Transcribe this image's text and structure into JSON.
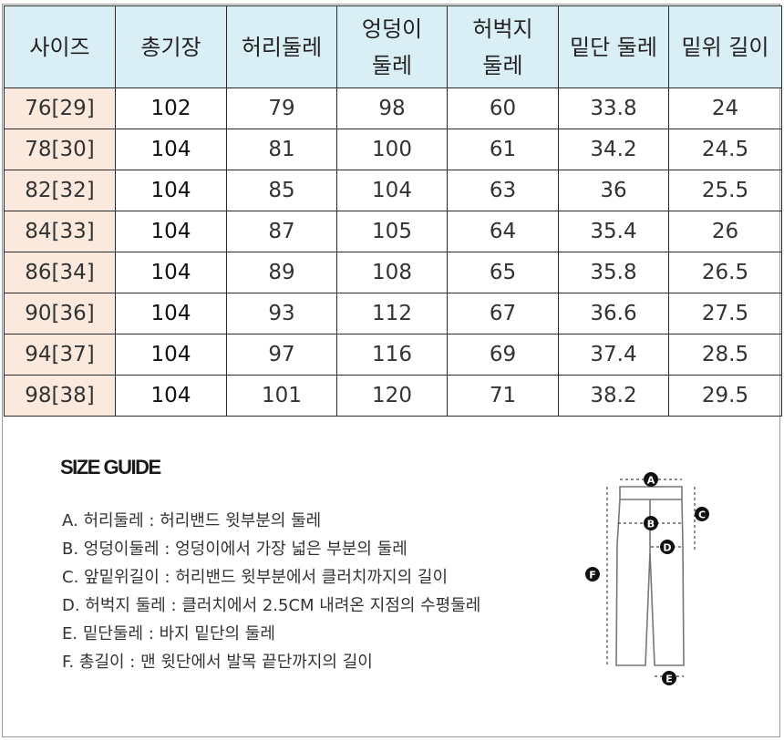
{
  "size_table": {
    "headers": [
      "사이즈",
      "총기장",
      "허리둘레",
      "엉덩이 둘레",
      "허벅지 둘레",
      "밑단 둘레",
      "밑위 길이"
    ],
    "header_lines": [
      [
        "사이즈"
      ],
      [
        "총기장"
      ],
      [
        "허리둘레"
      ],
      [
        "엉덩이",
        "둘레"
      ],
      [
        "허벅지",
        "둘레"
      ],
      [
        "밑단 둘레"
      ],
      [
        "밑위 길이"
      ]
    ],
    "rows": [
      [
        "76[29]",
        "102",
        "79",
        "98",
        "60",
        "33.8",
        "24"
      ],
      [
        "78[30]",
        "104",
        "81",
        "100",
        "61",
        "34.2",
        "24.5"
      ],
      [
        "82[32]",
        "104",
        "85",
        "104",
        "63",
        "36",
        "25.5"
      ],
      [
        "84[33]",
        "104",
        "87",
        "105",
        "64",
        "35.4",
        "26"
      ],
      [
        "86[34]",
        "104",
        "89",
        "108",
        "65",
        "35.8",
        "26.5"
      ],
      [
        "90[36]",
        "104",
        "93",
        "112",
        "67",
        "36.6",
        "27.5"
      ],
      [
        "94[37]",
        "104",
        "97",
        "116",
        "69",
        "37.4",
        "28.5"
      ],
      [
        "98[38]",
        "104",
        "101",
        "120",
        "71",
        "38.2",
        "29.5"
      ]
    ]
  },
  "size_guide": {
    "title": "SIZE GUIDE",
    "items": [
      "A. 허리둘레 : 허리밴드 윗부분의 둘레",
      "B. 엉덩이둘레 : 엉덩이에서 가장 넓은 부분의 둘레",
      "C. 앞밑위길이 : 허리밴드 윗부분에서 클러치까지의 길이",
      "D. 허벅지 둘레 : 클러치에서 2.5CM 내려온 지점의 수평둘레",
      "E. 밑단둘레 : 바지 밑단의 둘레",
      "F. 총길이 : 맨 윗단에서 발목 끝단까지의 길이"
    ],
    "diagram_markers": [
      "A",
      "B",
      "C",
      "D",
      "E",
      "F"
    ]
  },
  "colors": {
    "header_bg": "#daeef6",
    "size_col_bg": "#fbe9de",
    "grid": "#2a2a2a",
    "marker": "#111111"
  }
}
